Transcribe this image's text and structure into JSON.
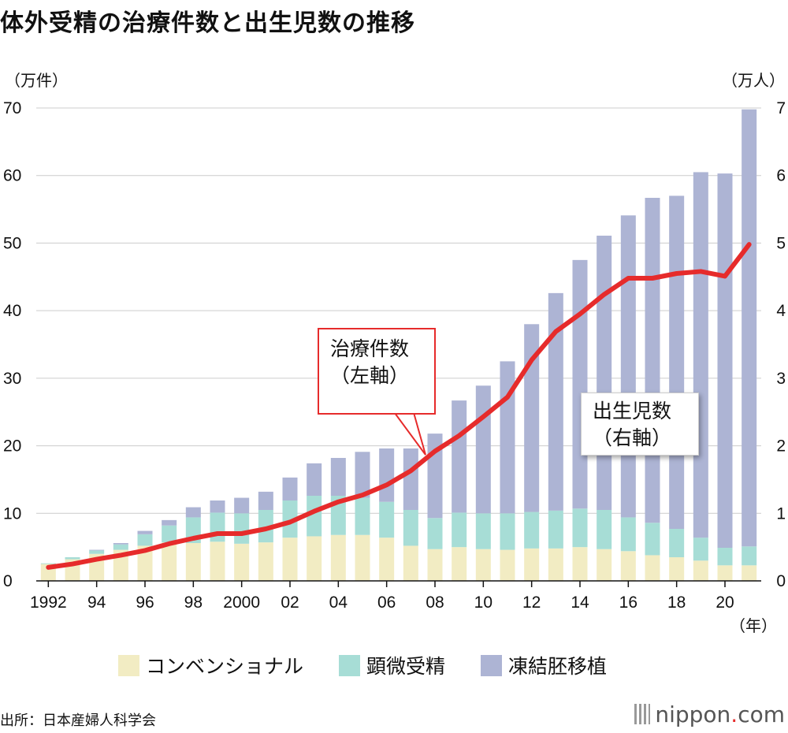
{
  "title": "体外受精の治療件数と出生児数の推移",
  "left_unit": "（万件）",
  "right_unit": "（万人）",
  "x_unit": "（年）",
  "colors": {
    "conventional": "#f2ecc3",
    "microinsemination": "#a7ddd6",
    "frozen_embryo": "#adb4d4",
    "births_line": "#e62b2b",
    "grid": "#cccccc"
  },
  "legend": [
    {
      "label": "コンベンショナル",
      "color": "#f2ecc3"
    },
    {
      "label": "顕微受精",
      "color": "#a7ddd6"
    },
    {
      "label": "凍結胚移植",
      "color": "#adb4d4"
    }
  ],
  "callouts": {
    "treatments": [
      "治療件数",
      "（左軸）"
    ],
    "births": [
      "出生児数",
      "（右軸）"
    ]
  },
  "source": "出所：日本産婦人科学会",
  "brand": {
    "name": "nippon",
    "dot": ".",
    "tld": "com"
  },
  "chart_data": {
    "type": "bar",
    "title": "体外受精の治療件数と出生児数の推移",
    "stacked": true,
    "x": [
      1992,
      1993,
      1994,
      1995,
      1996,
      1997,
      1998,
      1999,
      2000,
      2001,
      2002,
      2003,
      2004,
      2005,
      2006,
      2007,
      2008,
      2009,
      2010,
      2011,
      2012,
      2013,
      2014,
      2015,
      2016,
      2017,
      2018,
      2019,
      2020,
      2021
    ],
    "x_tick_labels": [
      "1992",
      "94",
      "96",
      "98",
      "2000",
      "02",
      "04",
      "06",
      "08",
      "10",
      "12",
      "14",
      "16",
      "18",
      "20"
    ],
    "x_tick_years": [
      1992,
      1994,
      1996,
      1998,
      2000,
      2002,
      2004,
      2006,
      2008,
      2010,
      2012,
      2014,
      2016,
      2018,
      2020
    ],
    "ylim_left": [
      0,
      70
    ],
    "ylim_right": [
      0,
      7
    ],
    "y_ticks_left": [
      0,
      10,
      20,
      30,
      40,
      50,
      60,
      70
    ],
    "y_ticks_right": [
      0,
      1,
      2,
      3,
      4,
      5,
      6,
      7
    ],
    "grid": true,
    "series": [
      {
        "name": "コンベンショナル",
        "axis": "left",
        "values": [
          2.5,
          3.2,
          4.0,
          4.6,
          5.2,
          5.7,
          5.6,
          5.8,
          5.5,
          5.7,
          6.4,
          6.6,
          6.8,
          6.8,
          6.4,
          5.2,
          4.7,
          5.0,
          4.7,
          4.6,
          4.8,
          4.8,
          5.0,
          4.7,
          4.4,
          3.8,
          3.5,
          3.0,
          2.3,
          2.3
        ]
      },
      {
        "name": "顕微受精",
        "axis": "left",
        "values": [
          0.1,
          0.3,
          0.5,
          0.8,
          1.7,
          2.5,
          3.8,
          4.3,
          4.5,
          4.8,
          5.5,
          6.0,
          5.8,
          5.5,
          5.3,
          5.3,
          4.6,
          5.1,
          5.3,
          5.4,
          5.4,
          5.6,
          5.7,
          5.8,
          5.0,
          4.8,
          4.2,
          3.4,
          2.6,
          2.8
        ]
      },
      {
        "name": "凍結胚移植",
        "axis": "left",
        "values": [
          0.0,
          0.0,
          0.1,
          0.2,
          0.5,
          0.8,
          1.5,
          1.8,
          2.3,
          2.7,
          3.4,
          4.8,
          5.6,
          6.8,
          7.9,
          9.1,
          12.5,
          16.6,
          18.9,
          22.5,
          27.8,
          32.2,
          36.8,
          40.6,
          44.7,
          48.1,
          49.3,
          54.1,
          55.4,
          64.7
        ]
      },
      {
        "name": "出生児数",
        "axis": "right",
        "type": "line",
        "values": [
          0.2,
          0.25,
          0.32,
          0.38,
          0.45,
          0.55,
          0.63,
          0.7,
          0.7,
          0.77,
          0.87,
          1.03,
          1.17,
          1.27,
          1.42,
          1.63,
          1.92,
          2.15,
          2.43,
          2.72,
          3.27,
          3.69,
          3.95,
          4.24,
          4.48,
          4.48,
          4.55,
          4.58,
          4.51,
          4.98
        ]
      }
    ]
  }
}
